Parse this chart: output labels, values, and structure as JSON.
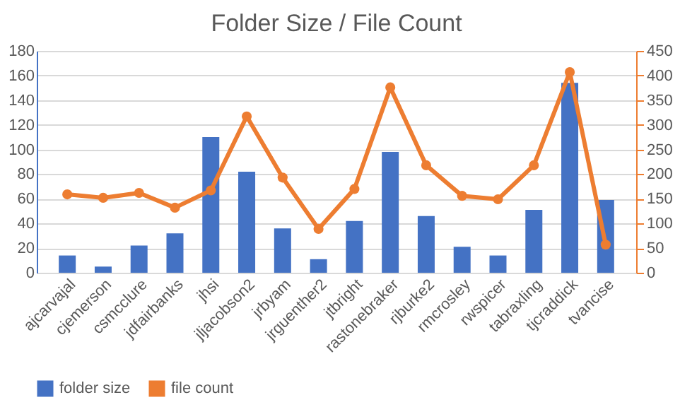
{
  "chart_data": {
    "type": "bar",
    "title": "Folder Size / File Count",
    "categories": [
      "ajcarvajal",
      "cjemerson",
      "csmcclure",
      "jdfairbanks",
      "jhsi",
      "jljacobson2",
      "jrbyam",
      "jrguenther2",
      "jtbright",
      "rastonebraker",
      "rjburke2",
      "rmcrosley",
      "rwspicer",
      "tabraxling",
      "tjcraddick",
      "tvancise"
    ],
    "series": [
      {
        "name": "folder size",
        "color": "#4472c4",
        "values": [
          14,
          5,
          22,
          32,
          110,
          82,
          36,
          11,
          42,
          98,
          46,
          21,
          14,
          51,
          154,
          59
        ]
      },
      {
        "name": "file count",
        "type": "line",
        "axis": "y2",
        "color": "#ed7d31",
        "marker": "circle",
        "values": [
          159,
          152,
          162,
          132,
          167,
          317,
          193,
          89,
          170,
          376,
          218,
          156,
          149,
          218,
          407,
          57
        ]
      }
    ],
    "ylim": [
      0,
      180
    ],
    "yticks": [
      0,
      20,
      40,
      60,
      80,
      100,
      120,
      140,
      160,
      180
    ],
    "y2lim": [
      0,
      450
    ],
    "y2ticks": [
      0,
      50,
      100,
      150,
      200,
      250,
      300,
      350,
      400,
      450
    ],
    "grid": "y",
    "legend": "bottom"
  }
}
